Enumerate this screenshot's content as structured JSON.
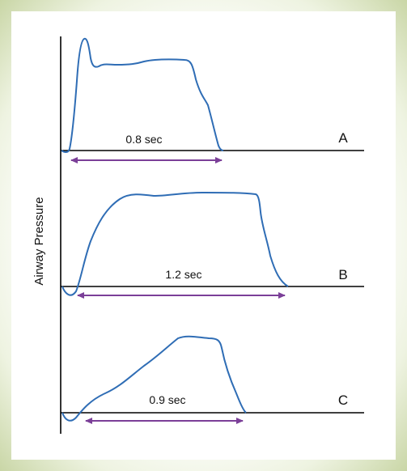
{
  "y_axis_label": "Airway Pressure",
  "panels": [
    {
      "letter": "A",
      "duration_label": "0.8 sec"
    },
    {
      "letter": "B",
      "duration_label": "1.2 sec"
    },
    {
      "letter": "C",
      "duration_label": "0.9 sec"
    }
  ],
  "colors": {
    "curve": "#2f6db5",
    "arrow": "#7b3f98",
    "axis": "#000000",
    "frame_edge": "#c9d6a6"
  }
}
